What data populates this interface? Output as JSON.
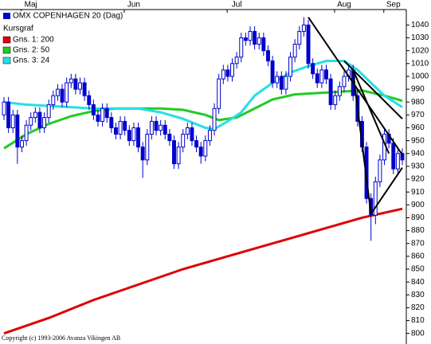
{
  "chart_data": {
    "type": "candlestick",
    "title": "OMX COPENHAGEN 20 (Dag)",
    "subtitle": "Kursgraf",
    "copyright": "Copyright (c) 1993-2006 Avanza Vikingen AB",
    "color": "#0000cc",
    "up_fill": "#ffffff",
    "categories": [
      null,
      null,
      null,
      null,
      null,
      null,
      "Maj",
      null,
      null,
      null,
      null,
      null,
      null,
      null,
      null,
      null,
      null,
      null,
      null,
      null,
      null,
      null,
      null,
      null,
      null,
      null,
      null,
      null,
      null,
      "Jun",
      null,
      null,
      null,
      null,
      null,
      null,
      null,
      null,
      null,
      null,
      null,
      null,
      null,
      null,
      null,
      null,
      null,
      null,
      null,
      null,
      null,
      null,
      "Jul",
      null,
      null,
      null,
      null,
      null,
      null,
      null,
      null,
      null,
      null,
      null,
      null,
      null,
      null,
      null,
      null,
      null,
      null,
      null,
      null,
      null,
      null,
      null,
      "Aug",
      null,
      null,
      null,
      null,
      null,
      null,
      null,
      null,
      null,
      null,
      "Sep",
      null,
      null
    ],
    "open": [
      970,
      980,
      960,
      970,
      945,
      950,
      962,
      968,
      972,
      960,
      968,
      978,
      985,
      990,
      980,
      995,
      998,
      990,
      995,
      985,
      978,
      970,
      965,
      975,
      968,
      960,
      955,
      965,
      958,
      950,
      960,
      945,
      935,
      955,
      965,
      958,
      962,
      955,
      950,
      932,
      945,
      955,
      960,
      950,
      945,
      938,
      950,
      958,
      975,
      998,
      1005,
      1000,
      1010,
      1015,
      1030,
      1028,
      1035,
      1025,
      1030,
      1020,
      1012,
      995,
      1000,
      990,
      1000,
      1015,
      1025,
      1035,
      1040,
      1010,
      1002,
      995,
      1005,
      998,
      978,
      985,
      992,
      1000,
      1005,
      985,
      965,
      945,
      905,
      892,
      918,
      935,
      955,
      948,
      928,
      940
    ],
    "high": [
      984,
      984,
      974,
      974,
      954,
      966,
      972,
      976,
      976,
      972,
      982,
      989,
      994,
      994,
      999,
      1002,
      1002,
      999,
      999,
      989,
      982,
      974,
      979,
      979,
      972,
      964,
      969,
      969,
      962,
      964,
      964,
      949,
      959,
      969,
      969,
      966,
      966,
      959,
      954,
      949,
      959,
      964,
      964,
      954,
      949,
      954,
      962,
      979,
      1002,
      1009,
      1009,
      1014,
      1019,
      1034,
      1034,
      1039,
      1039,
      1034,
      1034,
      1024,
      1016,
      1004,
      1004,
      1004,
      1019,
      1029,
      1039,
      1046,
      1044,
      1014,
      1006,
      1009,
      1009,
      1002,
      989,
      996,
      1004,
      1009,
      1009,
      989,
      969,
      949,
      909,
      922,
      939,
      959,
      959,
      952,
      944,
      944
    ],
    "low": [
      966,
      956,
      956,
      932,
      941,
      946,
      958,
      964,
      956,
      956,
      964,
      974,
      981,
      976,
      976,
      991,
      986,
      986,
      981,
      974,
      966,
      961,
      961,
      964,
      956,
      951,
      951,
      954,
      946,
      946,
      941,
      921,
      931,
      951,
      954,
      954,
      951,
      946,
      928,
      928,
      941,
      951,
      946,
      941,
      932,
      934,
      946,
      954,
      971,
      994,
      996,
      996,
      1006,
      1011,
      1024,
      1024,
      1021,
      1021,
      1016,
      1008,
      991,
      991,
      986,
      986,
      996,
      1011,
      1021,
      1031,
      1006,
      998,
      991,
      991,
      994,
      974,
      974,
      981,
      988,
      996,
      981,
      961,
      941,
      901,
      872,
      885,
      914,
      931,
      944,
      924,
      924,
      931
    ],
    "close": [
      980,
      960,
      970,
      945,
      950,
      962,
      968,
      972,
      960,
      968,
      978,
      985,
      990,
      980,
      995,
      998,
      990,
      995,
      985,
      978,
      970,
      965,
      975,
      968,
      960,
      955,
      965,
      958,
      950,
      960,
      945,
      935,
      955,
      965,
      958,
      962,
      955,
      950,
      932,
      945,
      955,
      960,
      950,
      945,
      938,
      950,
      958,
      975,
      998,
      1005,
      1000,
      1010,
      1015,
      1030,
      1028,
      1035,
      1025,
      1030,
      1020,
      1012,
      995,
      1000,
      990,
      1000,
      1015,
      1025,
      1035,
      1040,
      1010,
      1002,
      995,
      1005,
      998,
      978,
      985,
      992,
      1000,
      1005,
      985,
      965,
      945,
      905,
      892,
      918,
      935,
      955,
      948,
      928,
      940,
      935
    ],
    "series": [
      {
        "name": "Gns. 1: 200",
        "color": "#dd0000",
        "x": [
          0,
          10,
          20,
          30,
          40,
          50,
          60,
          70,
          80,
          89
        ],
        "values": [
          800,
          812,
          826,
          838,
          850,
          860,
          870,
          880,
          890,
          897
        ]
      },
      {
        "name": "Gns. 2: 50",
        "color": "#22cc22",
        "x": [
          0,
          5,
          10,
          15,
          20,
          25,
          30,
          35,
          40,
          45,
          48,
          52,
          56,
          60,
          65,
          70,
          75,
          80,
          85,
          89
        ],
        "values": [
          944,
          955,
          963,
          969,
          973,
          975,
          975,
          975,
          974,
          970,
          966,
          968,
          975,
          982,
          986,
          987,
          988,
          989,
          985,
          981
        ]
      },
      {
        "name": "Gns. 3: 24",
        "color": "#22e0e8",
        "x": [
          0,
          5,
          10,
          15,
          20,
          25,
          30,
          35,
          40,
          45,
          47,
          50,
          53,
          56,
          60,
          64,
          68,
          72,
          76,
          79,
          82,
          85,
          89
        ],
        "values": [
          980,
          978,
          977,
          976,
          975,
          975,
          975,
          972,
          967,
          960,
          959,
          965,
          972,
          985,
          995,
          1003,
          1008,
          1012,
          1012,
          1005,
          995,
          985,
          976
        ]
      }
    ],
    "trendlines": [
      {
        "x": [
          68,
          89
        ],
        "values": [
          1046,
          939
        ]
      },
      {
        "x": [
          76,
          89
        ],
        "values": [
          1012,
          967
        ]
      },
      {
        "x": [
          78,
          86
        ],
        "values": [
          1005,
          940
        ]
      },
      {
        "x": [
          78,
          82
        ],
        "values": [
          1003,
          893
        ]
      },
      {
        "x": [
          82,
          89
        ],
        "values": [
          893,
          929
        ]
      }
    ],
    "trendline_color": "#000000",
    "ylim": [
      793,
      1052
    ],
    "yticks": [
      800,
      810,
      820,
      830,
      840,
      850,
      860,
      870,
      880,
      890,
      900,
      910,
      920,
      930,
      940,
      950,
      960,
      970,
      980,
      990,
      1000,
      1010,
      1020,
      1030,
      1040
    ]
  }
}
